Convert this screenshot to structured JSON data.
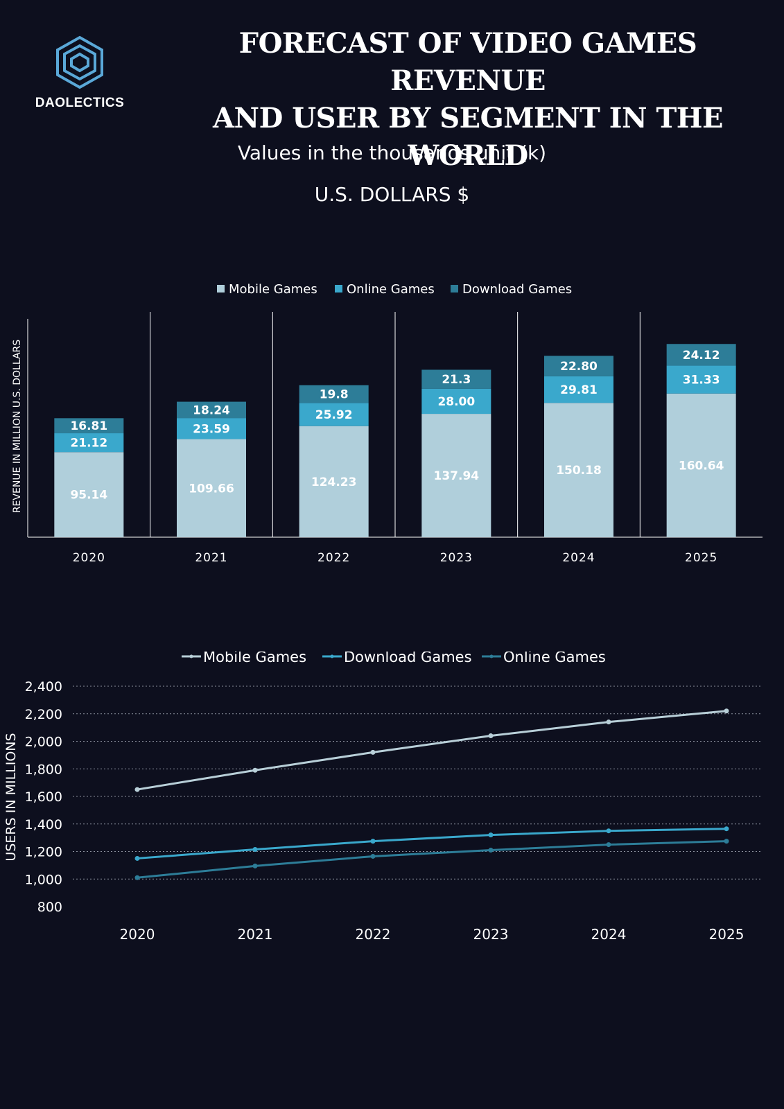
{
  "brand": {
    "name": "DAOLECTICS",
    "logo_icon": "layered-hexagon-icon",
    "logo_color": "#5aa8d8"
  },
  "header": {
    "title_line1": "FORECAST OF VIDEO GAMES REVENUE",
    "title_line2": "AND USER BY SEGMENT IN THE WORLD"
  },
  "subtitles": {
    "units": "Values in the thousands unit (k)",
    "currency": "U.S. DOLLARS $"
  },
  "colors": {
    "background": "#0d0f1e",
    "mobile": "#b0cfdb",
    "online": "#3aa8cc",
    "download": "#2d7d98",
    "line_mobile": "#b8cfd8",
    "line_download": "#3aa8cc",
    "line_online": "#2d7d98"
  },
  "chart_data": [
    {
      "type": "bar",
      "stacked": true,
      "categories": [
        "2020",
        "2021",
        "2022",
        "2023",
        "2024",
        "2025"
      ],
      "ylabel": "REVENUE IN MILLION U.S. DOLLARS",
      "legend_position": "top-center",
      "grid": false,
      "series": [
        {
          "name": "Mobile Games",
          "values": [
            95.14,
            109.66,
            124.23,
            137.94,
            150.18,
            160.64
          ],
          "labels": [
            "95.14",
            "109.66",
            "124.23",
            "137.94",
            "150.18",
            "160.64"
          ]
        },
        {
          "name": "Online Games",
          "values": [
            21.12,
            23.59,
            25.92,
            28.0,
            29.81,
            31.33
          ],
          "labels": [
            "21.12",
            "23.59",
            "25.92",
            "28.00",
            "29.81",
            "31.33"
          ]
        },
        {
          "name": "Download Games",
          "values": [
            16.81,
            18.24,
            19.8,
            21.3,
            22.8,
            24.12
          ],
          "labels": [
            "16.81",
            "18.24",
            "19.8",
            "21.3",
            "22.80",
            "24.12"
          ]
        }
      ],
      "ylim": [
        0,
        250
      ]
    },
    {
      "type": "line",
      "x": [
        "2020",
        "2021",
        "2022",
        "2023",
        "2024",
        "2025"
      ],
      "ylabel": "USERS IN MILLIONS",
      "ylim": [
        800,
        2400
      ],
      "yticks": [
        800,
        1000,
        1200,
        1400,
        1600,
        1800,
        2000,
        2200,
        2400
      ],
      "ytick_labels": [
        "800",
        "1,000",
        "1,200",
        "1,400",
        "1,600",
        "1,800",
        "2,000",
        "2,200",
        "2,400"
      ],
      "grid": "horizontal-dotted",
      "legend_position": "top-center",
      "series": [
        {
          "name": "Mobile Games",
          "values": [
            1650,
            1790,
            1920,
            2040,
            2140,
            2220
          ]
        },
        {
          "name": "Download Games",
          "values": [
            1150,
            1215,
            1275,
            1320,
            1350,
            1365
          ]
        },
        {
          "name": "Online Games",
          "values": [
            1010,
            1095,
            1165,
            1210,
            1250,
            1275
          ]
        }
      ]
    }
  ]
}
